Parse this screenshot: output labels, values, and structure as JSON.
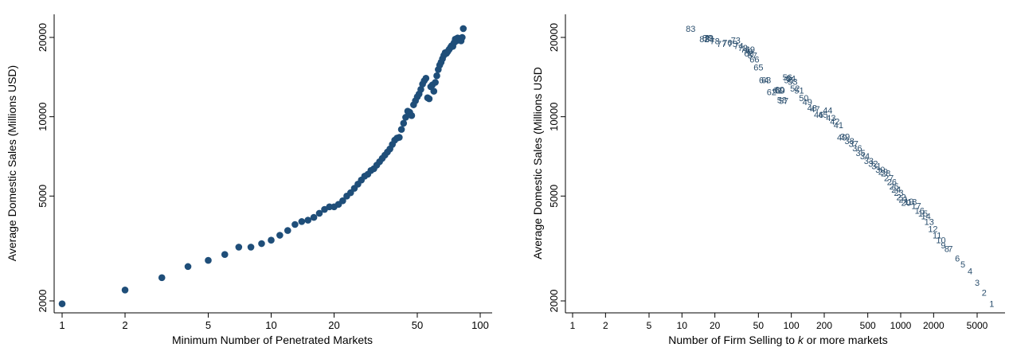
{
  "chart_data": [
    {
      "type": "scatter",
      "x_scale": "log",
      "y_scale": "log",
      "xlabel": "Minimum Number of Penetrated Markets",
      "ylabel": "Average Domestic Sales (Millions USD)",
      "xlim": [
        1,
        100
      ],
      "ylim": [
        2000,
        20000
      ],
      "xticks": [
        1,
        2,
        5,
        10,
        20,
        50,
        100
      ],
      "yticks": [
        2000,
        5000,
        10000,
        20000
      ],
      "grid": false,
      "marker_color": "#1f4e79",
      "x": [
        1,
        2,
        3,
        4,
        5,
        6,
        7,
        8,
        9,
        10,
        11,
        12,
        13,
        14,
        15,
        16,
        17,
        18,
        19,
        20,
        21,
        22,
        23,
        24,
        25,
        26,
        27,
        28,
        29,
        30,
        31,
        32,
        33,
        34,
        35,
        36,
        37,
        38,
        39,
        40,
        41,
        42,
        43,
        44,
        45,
        46,
        47,
        48,
        49,
        50,
        51,
        52,
        53,
        54,
        55,
        56,
        57,
        58,
        59,
        60,
        61,
        62,
        63,
        64,
        65,
        66,
        67,
        68,
        69,
        70,
        71,
        72,
        73,
        74,
        75,
        76,
        77,
        78,
        79,
        80,
        81,
        82,
        83
      ],
      "y": [
        1950,
        2200,
        2450,
        2700,
        2850,
        3000,
        3200,
        3200,
        3300,
        3400,
        3550,
        3700,
        3900,
        4000,
        4050,
        4150,
        4300,
        4450,
        4550,
        4550,
        4650,
        4800,
        5000,
        5150,
        5350,
        5550,
        5750,
        5950,
        6050,
        6250,
        6350,
        6550,
        6750,
        6950,
        7150,
        7350,
        7550,
        7850,
        8150,
        8300,
        8350,
        8950,
        9450,
        9950,
        10500,
        10400,
        10100,
        11100,
        11500,
        11900,
        12200,
        12700,
        13300,
        13700,
        14000,
        11800,
        11700,
        13000,
        13200,
        12500,
        13500,
        14300,
        15100,
        15700,
        16100,
        16600,
        17100,
        17500,
        17400,
        17700,
        18000,
        18300,
        18600,
        18500,
        19100,
        19700,
        19400,
        19900,
        19800,
        19700,
        19400,
        20000,
        21600
      ]
    },
    {
      "type": "scatter",
      "x_scale": "log",
      "y_scale": "log",
      "xlabel_pre": "Number of Firm Selling to",
      "xlabel_var": "k",
      "xlabel_post": "or more markets",
      "ylabel": "Average Domestic Sales (Millions USD",
      "xlim": [
        1,
        5000
      ],
      "ylim": [
        2000,
        20000
      ],
      "xticks": [
        1,
        2,
        5,
        10,
        20,
        50,
        100,
        200,
        500,
        1000,
        2000,
        5000
      ],
      "yticks": [
        2000,
        5000,
        10000,
        20000
      ],
      "grid": false,
      "label_color": "#2b4f6e",
      "points": [
        {
          "label": "83",
          "x": 12,
          "y": 21600
        },
        {
          "label": "82",
          "x": 16,
          "y": 19700
        },
        {
          "label": "80",
          "x": 17,
          "y": 19900
        },
        {
          "label": "81",
          "x": 18,
          "y": 19800
        },
        {
          "label": "79",
          "x": 17.5,
          "y": 19950
        },
        {
          "label": "78",
          "x": 20,
          "y": 19400
        },
        {
          "label": "77",
          "x": 23,
          "y": 18900
        },
        {
          "label": "76",
          "x": 26,
          "y": 19100
        },
        {
          "label": "75",
          "x": 29,
          "y": 18900
        },
        {
          "label": "73",
          "x": 31,
          "y": 19500
        },
        {
          "label": "74",
          "x": 33,
          "y": 18600
        },
        {
          "label": "72",
          "x": 36,
          "y": 18300
        },
        {
          "label": "71",
          "x": 38,
          "y": 18000
        },
        {
          "label": "70",
          "x": 40,
          "y": 17700
        },
        {
          "label": "69",
          "x": 42,
          "y": 18000
        },
        {
          "label": "68",
          "x": 41,
          "y": 17400
        },
        {
          "label": "67",
          "x": 44,
          "y": 17100
        },
        {
          "label": "66",
          "x": 46,
          "y": 16500
        },
        {
          "label": "65",
          "x": 50,
          "y": 15400
        },
        {
          "label": "64",
          "x": 56,
          "y": 13800
        },
        {
          "label": "63",
          "x": 59,
          "y": 13800
        },
        {
          "label": "62",
          "x": 66,
          "y": 12400
        },
        {
          "label": "61",
          "x": 75,
          "y": 12600
        },
        {
          "label": "60",
          "x": 78,
          "y": 12700
        },
        {
          "label": "59",
          "x": 79,
          "y": 12600
        },
        {
          "label": "58",
          "x": 82,
          "y": 11600
        },
        {
          "label": "57",
          "x": 85,
          "y": 11500
        },
        {
          "label": "56",
          "x": 92,
          "y": 14100
        },
        {
          "label": "55",
          "x": 95,
          "y": 13800
        },
        {
          "label": "54",
          "x": 99,
          "y": 14000
        },
        {
          "label": "53",
          "x": 103,
          "y": 13600
        },
        {
          "label": "52",
          "x": 108,
          "y": 12800
        },
        {
          "label": "51",
          "x": 118,
          "y": 12600
        },
        {
          "label": "50",
          "x": 130,
          "y": 11800
        },
        {
          "label": "49",
          "x": 140,
          "y": 11400
        },
        {
          "label": "48",
          "x": 155,
          "y": 10800
        },
        {
          "label": "47",
          "x": 165,
          "y": 10700
        },
        {
          "label": "46",
          "x": 178,
          "y": 10200
        },
        {
          "label": "45",
          "x": 195,
          "y": 10200
        },
        {
          "label": "44",
          "x": 215,
          "y": 10600
        },
        {
          "label": "43",
          "x": 230,
          "y": 9900
        },
        {
          "label": "42",
          "x": 250,
          "y": 9600
        },
        {
          "label": "41",
          "x": 270,
          "y": 9300
        },
        {
          "label": "40",
          "x": 290,
          "y": 8350
        },
        {
          "label": "39",
          "x": 310,
          "y": 8400
        },
        {
          "label": "38",
          "x": 340,
          "y": 8100
        },
        {
          "label": "37",
          "x": 370,
          "y": 7900
        },
        {
          "label": "36",
          "x": 400,
          "y": 7600
        },
        {
          "label": "35",
          "x": 430,
          "y": 7300
        },
        {
          "label": "34",
          "x": 470,
          "y": 7100
        },
        {
          "label": "33",
          "x": 510,
          "y": 6800
        },
        {
          "label": "32",
          "x": 560,
          "y": 6650
        },
        {
          "label": "31",
          "x": 600,
          "y": 6500
        },
        {
          "label": "30",
          "x": 650,
          "y": 6300
        },
        {
          "label": "29",
          "x": 690,
          "y": 6200
        },
        {
          "label": "28",
          "x": 730,
          "y": 6100
        },
        {
          "label": "27",
          "x": 780,
          "y": 5850
        },
        {
          "label": "26",
          "x": 830,
          "y": 5650
        },
        {
          "label": "25",
          "x": 870,
          "y": 5450
        },
        {
          "label": "24",
          "x": 910,
          "y": 5300
        },
        {
          "label": "23",
          "x": 960,
          "y": 5150
        },
        {
          "label": "22",
          "x": 1010,
          "y": 4950
        },
        {
          "label": "21",
          "x": 1060,
          "y": 4850
        },
        {
          "label": "20",
          "x": 1120,
          "y": 4720
        },
        {
          "label": "19",
          "x": 1190,
          "y": 4780
        },
        {
          "label": "18",
          "x": 1270,
          "y": 4760
        },
        {
          "label": "17",
          "x": 1390,
          "y": 4600
        },
        {
          "label": "16",
          "x": 1490,
          "y": 4400
        },
        {
          "label": "15",
          "x": 1600,
          "y": 4300
        },
        {
          "label": "14",
          "x": 1700,
          "y": 4200
        },
        {
          "label": "13",
          "x": 1820,
          "y": 4000
        },
        {
          "label": "12",
          "x": 1970,
          "y": 3750
        },
        {
          "label": "11",
          "x": 2150,
          "y": 3550
        },
        {
          "label": "10",
          "x": 2330,
          "y": 3400
        },
        {
          "label": "9",
          "x": 2450,
          "y": 3250
        },
        {
          "label": "8",
          "x": 2640,
          "y": 3150
        },
        {
          "label": "7",
          "x": 2850,
          "y": 3150
        },
        {
          "label": "6",
          "x": 3300,
          "y": 2900
        },
        {
          "label": "5",
          "x": 3700,
          "y": 2750
        },
        {
          "label": "4",
          "x": 4300,
          "y": 2600
        },
        {
          "label": "3",
          "x": 5000,
          "y": 2350
        },
        {
          "label": "2",
          "x": 5800,
          "y": 2150
        },
        {
          "label": "1",
          "x": 6800,
          "y": 1950
        }
      ]
    }
  ]
}
